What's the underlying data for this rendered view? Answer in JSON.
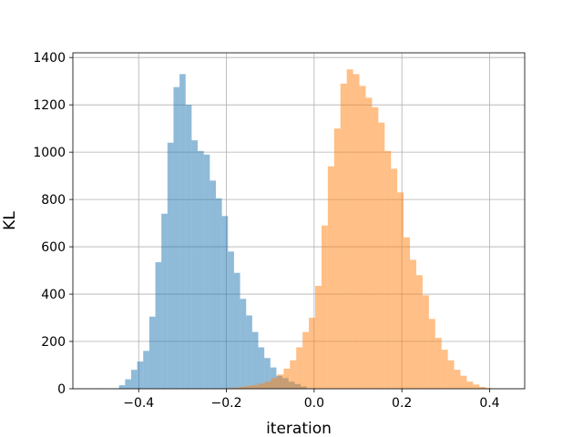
{
  "chart_data": {
    "type": "bar",
    "title": "",
    "xlabel": "iteration",
    "ylabel": "KL",
    "xlim": [
      -0.55,
      0.48
    ],
    "ylim": [
      0,
      1420
    ],
    "xticks": [
      -0.4,
      -0.2,
      0.0,
      0.2,
      0.4
    ],
    "xtick_labels": [
      "−0.4",
      "−0.2",
      "0.0",
      "0.2",
      "0.4"
    ],
    "yticks": [
      0,
      200,
      400,
      600,
      800,
      1000,
      1200,
      1400
    ],
    "ytick_labels": [
      "0",
      "200",
      "400",
      "600",
      "800",
      "1000",
      "1200",
      "1400"
    ],
    "grid": true,
    "legend": false,
    "series": [
      {
        "color": "#1f77b4",
        "opacity": 0.5,
        "bin_edges": [
          -0.5,
          -0.4862,
          -0.4724,
          -0.4586,
          -0.4448,
          -0.431,
          -0.4172,
          -0.4034,
          -0.3896,
          -0.3758,
          -0.362,
          -0.3482,
          -0.3344,
          -0.3206,
          -0.3068,
          -0.293,
          -0.2792,
          -0.2654,
          -0.2516,
          -0.2378,
          -0.224,
          -0.2102,
          -0.1964,
          -0.1826,
          -0.1688,
          -0.155,
          -0.1412,
          -0.1274,
          -0.1136,
          -0.0998,
          -0.086,
          -0.0722,
          -0.0584,
          -0.0446,
          -0.0308,
          -0.017
        ],
        "counts": [
          1,
          0,
          0,
          2,
          15,
          40,
          80,
          115,
          160,
          305,
          535,
          740,
          1040,
          1275,
          1330,
          1200,
          1050,
          1005,
          990,
          880,
          805,
          730,
          580,
          490,
          380,
          310,
          240,
          175,
          130,
          90,
          55,
          45,
          30,
          20,
          10
        ]
      },
      {
        "color": "#ff7f0e",
        "opacity": 0.5,
        "bin_edges": [
          -0.3,
          -0.2856,
          -0.2712,
          -0.2568,
          -0.2424,
          -0.228,
          -0.2136,
          -0.1992,
          -0.1848,
          -0.1704,
          -0.156,
          -0.1416,
          -0.1272,
          -0.1128,
          -0.0984,
          -0.084,
          -0.0696,
          -0.0552,
          -0.0408,
          -0.0264,
          -0.012,
          0.0024,
          0.0168,
          0.0312,
          0.0456,
          0.06,
          0.0744,
          0.0888,
          0.1032,
          0.1176,
          0.132,
          0.1464,
          0.1608,
          0.1752,
          0.1896,
          0.204,
          0.2184,
          0.2328,
          0.2472,
          0.2616,
          0.276,
          0.2904,
          0.3048,
          0.3192,
          0.3336,
          0.348,
          0.3624,
          0.3768,
          0.3912,
          0.4056,
          0.42
        ],
        "counts": [
          1,
          0,
          1,
          0,
          2,
          1,
          2,
          3,
          5,
          8,
          12,
          16,
          22,
          30,
          45,
          60,
          85,
          120,
          175,
          240,
          300,
          435,
          690,
          940,
          1100,
          1290,
          1350,
          1330,
          1280,
          1230,
          1190,
          1125,
          1005,
          930,
          830,
          640,
          545,
          480,
          395,
          295,
          215,
          165,
          120,
          80,
          55,
          30,
          18,
          8,
          3,
          1
        ]
      }
    ]
  }
}
